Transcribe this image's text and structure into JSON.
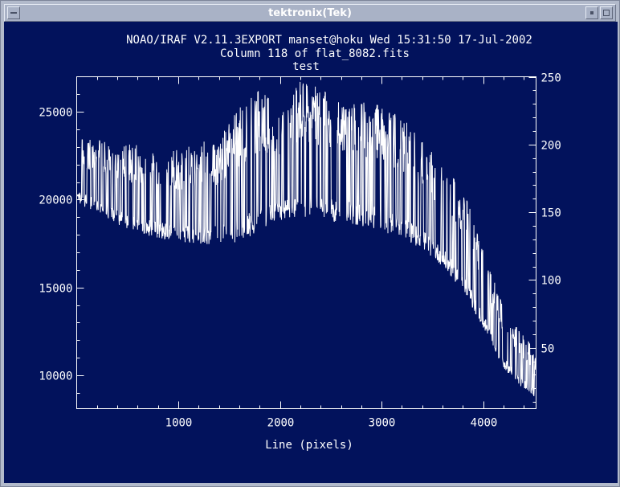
{
  "window": {
    "title": "tektronix(Tek)"
  },
  "chart_data": {
    "type": "line",
    "header": "NOAO/IRAF V2.11.3EXPORT manset@hoku Wed 15:31:50 17-Jul-2002",
    "subtitle": "Column 118 of flat_8082.fits",
    "title": "test",
    "xlabel": "Line (pixels)",
    "xlim": [
      0,
      4520
    ],
    "ylim": [
      8100,
      27000
    ],
    "y2lim": [
      5,
      250
    ],
    "x_ticks": [
      1000,
      2000,
      3000,
      4000
    ],
    "x_tick_labels": [
      "1000",
      "2000",
      "3000",
      "4000"
    ],
    "y_ticks": [
      10000,
      15000,
      20000,
      25000
    ],
    "y_tick_labels": [
      "10000",
      "15000",
      "20000",
      "25000"
    ],
    "y2_ticks": [
      50,
      100,
      150,
      200,
      250
    ],
    "y2_tick_labels": [
      "50",
      "100",
      "150",
      "200",
      "250"
    ],
    "grid": false,
    "colors": {
      "background": "#02125c",
      "foreground": "#ffffff"
    },
    "series": [
      {
        "baseline": {
          "x": [
            0,
            200,
            400,
            600,
            800,
            1000,
            1200,
            1400,
            1600,
            1800,
            2000,
            2200,
            2400,
            2600,
            2800,
            3000,
            3200,
            3400,
            3600,
            3800,
            4000,
            4200,
            4400,
            4520
          ],
          "y": [
            19800,
            19300,
            18600,
            18100,
            17800,
            17600,
            17500,
            17400,
            17600,
            18200,
            18800,
            18900,
            18800,
            18700,
            18500,
            18200,
            17800,
            17200,
            16200,
            14800,
            12700,
            10400,
            9200,
            8700
          ]
        },
        "upper_envelope": {
          "x": [
            0,
            200,
            400,
            600,
            800,
            1000,
            1200,
            1400,
            1600,
            1800,
            2000,
            2200,
            2400,
            2600,
            2800,
            3000,
            3200,
            3400,
            3600,
            3800,
            4000,
            4200,
            4400,
            4520
          ],
          "y": [
            23600,
            23400,
            23300,
            23100,
            23000,
            22900,
            23200,
            23700,
            25300,
            26400,
            25000,
            26900,
            26300,
            25700,
            25600,
            25500,
            24700,
            23400,
            21900,
            20700,
            17200,
            13800,
            12200,
            11500
          ]
        }
      }
    ]
  }
}
